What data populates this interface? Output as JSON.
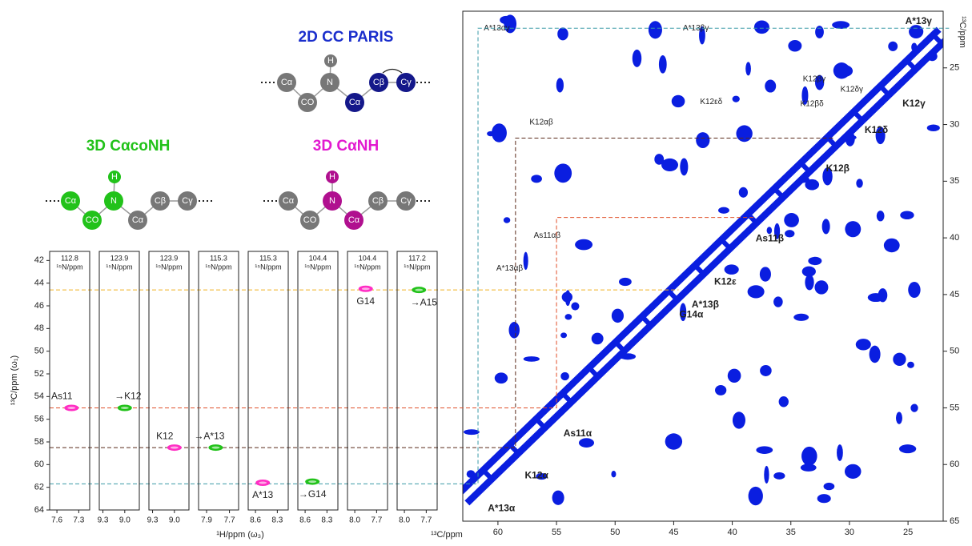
{
  "diagrams": [
    {
      "title": "2D CC PARIS",
      "nodes": [
        "H",
        "Cα",
        "N",
        "CO",
        "Cα",
        "Cβ",
        "Cγ"
      ]
    },
    {
      "title": "3D CαcoNH",
      "nodes": [
        "H",
        "Cα",
        "N",
        "CO",
        "Cα",
        "Cβ",
        "Cγ"
      ]
    },
    {
      "title": "3D CαNH",
      "nodes": [
        "H",
        "Cα",
        "N",
        "CO",
        "Cα",
        "Cβ",
        "Cγ"
      ]
    }
  ],
  "strips": {
    "y_label": "¹³C/ppm (ω₁)",
    "x_label": "¹H/ppm (ω₃)",
    "unit": "¹⁵N/ppm",
    "ylim": [
      41.2,
      64
    ],
    "yticks": [
      42,
      44,
      46,
      48,
      50,
      52,
      54,
      56,
      58,
      60,
      62,
      64
    ],
    "panels": [
      {
        "n15": "112.8",
        "xlim": [
          7.7,
          7.15
        ],
        "xticks": [
          7.6,
          7.3
        ],
        "peak": {
          "x": 7.4,
          "y": 55.0,
          "label": "As11",
          "color": "#ff2ec4"
        }
      },
      {
        "n15": "123.9",
        "xlim": [
          9.35,
          8.8
        ],
        "xticks": [
          9.3,
          {
            "value": 9,
            "label": "9.0"
          }
        ],
        "peak": {
          "x": 9.0,
          "y": 55.0,
          "label": "→K12",
          "color": "#22c21a"
        }
      },
      {
        "n15": "123.9",
        "xlim": [
          9.35,
          8.8
        ],
        "xticks": [
          9.3,
          {
            "value": 9,
            "label": "9.0"
          }
        ],
        "peak": {
          "x": 9.0,
          "y": 58.5,
          "label": "K12",
          "color": "#ff2ec4"
        }
      },
      {
        "n15": "115.3",
        "xlim": [
          7.97,
          7.62
        ],
        "xticks": [
          7.9,
          7.7
        ],
        "peak": {
          "x": 7.82,
          "y": 58.5,
          "label": "→A*13",
          "color": "#22c21a"
        }
      },
      {
        "n15": "115.3",
        "xlim": [
          8.7,
          8.15
        ],
        "xticks": [
          8.6,
          8.3
        ],
        "peak": {
          "x": 8.5,
          "y": 61.6,
          "label": "A*13",
          "color": "#ff2ec4"
        }
      },
      {
        "n15": "104.4",
        "xlim": [
          8.7,
          8.15
        ],
        "xticks": [
          8.6,
          8.3
        ],
        "peak": {
          "x": 8.5,
          "y": 61.5,
          "label": "→G14",
          "color": "#22c21a"
        }
      },
      {
        "n15": "104.4",
        "xlim": [
          8.1,
          7.55
        ],
        "xticks": [
          {
            "value": 8,
            "label": "8.0"
          },
          7.7
        ],
        "peak": {
          "x": 7.85,
          "y": 44.5,
          "label": "G14",
          "color": "#ff2ec4"
        }
      },
      {
        "n15": "117.2",
        "xlim": [
          8.1,
          7.55
        ],
        "xticks": [
          {
            "value": 8,
            "label": "8.0"
          },
          7.7
        ],
        "peak": {
          "x": 7.8,
          "y": 44.6,
          "label": "→A15",
          "color": "#22c21a"
        }
      }
    ]
  },
  "spectrum": {
    "x_label": "¹³C/ppm",
    "y_label": "¹³C/ppm",
    "color": "#0a1ee0",
    "xlim": [
      63,
      22
    ],
    "ylim": [
      20,
      65
    ],
    "xticks": [
      60,
      55,
      50,
      45,
      40,
      35,
      30,
      25
    ],
    "yticks": [
      25,
      30,
      35,
      40,
      45,
      50,
      55,
      60,
      65
    ],
    "assignments": [
      {
        "label": "A*13αγ",
        "x": 60.1,
        "y": 21.5,
        "bold": false
      },
      {
        "label": "A*13βγ",
        "x": 43.1,
        "y": 21.5,
        "bold": false
      },
      {
        "label": "A*13γ",
        "x": 24.1,
        "y": 20.9,
        "bold": true
      },
      {
        "label": "K12βγ",
        "x": 33.0,
        "y": 26.0,
        "bold": false
      },
      {
        "label": "K12δγ",
        "x": 29.8,
        "y": 26.9,
        "bold": false
      },
      {
        "label": "K12εδ",
        "x": 41.8,
        "y": 28.0,
        "bold": false
      },
      {
        "label": "K12βδ",
        "x": 33.2,
        "y": 28.2,
        "bold": false
      },
      {
        "label": "K12γ",
        "x": 24.5,
        "y": 28.2,
        "bold": true
      },
      {
        "label": "K12αβ",
        "x": 56.3,
        "y": 29.8,
        "bold": false
      },
      {
        "label": "K12δ",
        "x": 27.7,
        "y": 30.5,
        "bold": true
      },
      {
        "label": "K12β",
        "x": 31.0,
        "y": 33.9,
        "bold": true
      },
      {
        "label": "As11αβ",
        "x": 55.8,
        "y": 39.8,
        "bold": false
      },
      {
        "label": "As11β",
        "x": 36.8,
        "y": 40.1,
        "bold": true
      },
      {
        "label": "A*13αβ",
        "x": 59.0,
        "y": 42.7,
        "bold": false
      },
      {
        "label": "K12ε",
        "x": 40.6,
        "y": 43.9,
        "bold": true
      },
      {
        "label": "A*13β",
        "x": 42.3,
        "y": 45.9,
        "bold": true
      },
      {
        "label": "G14α",
        "x": 43.5,
        "y": 46.8,
        "bold": true
      },
      {
        "label": "As11α",
        "x": 53.2,
        "y": 57.3,
        "bold": true
      },
      {
        "label": "K12α",
        "x": 56.7,
        "y": 61.0,
        "bold": true
      },
      {
        "label": "A*13α",
        "x": 59.7,
        "y": 63.9,
        "bold": true
      }
    ],
    "guides": [
      {
        "from": 55.0,
        "to": 38.2,
        "color": "#e0502a"
      },
      {
        "from": 58.5,
        "to": 31.2,
        "color": "#5a2a1a"
      },
      {
        "from": 61.7,
        "to": 21.5,
        "color": "#3a9aa8"
      },
      {
        "from": 44.6,
        "to": 44.6,
        "color": "#f0b020"
      }
    ]
  }
}
